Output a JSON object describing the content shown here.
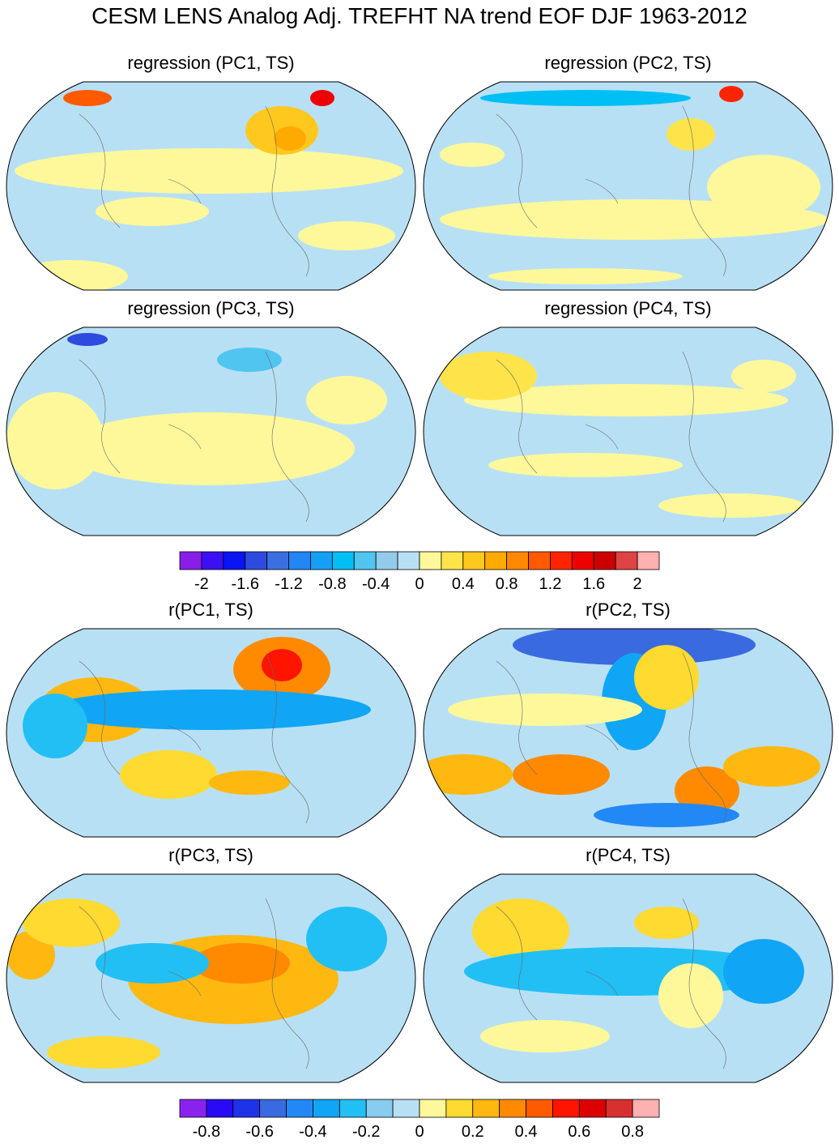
{
  "title": "CESM LENS Analog Adj. TREFHT NA trend EOF DJF 1963-2012",
  "chart_data": [
    {
      "type": "heatmap",
      "panels": [
        {
          "title": "regression (PC1, TS)"
        },
        {
          "title": "regression (PC2, TS)"
        },
        {
          "title": "regression (PC3, TS)"
        },
        {
          "title": "regression (PC4, TS)"
        }
      ],
      "colorbar": {
        "labels": [
          "-2",
          "-1.6",
          "-1.2",
          "-0.8",
          "-0.4",
          "0",
          "0.4",
          "0.8",
          "1.2",
          "1.6",
          "2"
        ],
        "colors": [
          "#8a1ee8",
          "#3b10f5",
          "#0a14f5",
          "#2e4be0",
          "#3b6fe0",
          "#2286f5",
          "#15a0f5",
          "#00bff5",
          "#50c5f0",
          "#93cbea",
          "#b8e0f5",
          "#fff89a",
          "#ffe34a",
          "#ffc81e",
          "#ffaa00",
          "#ff8800",
          "#ff5a00",
          "#ff2400",
          "#ee0000",
          "#cc0000",
          "#dd4444",
          "#ffb0b0"
        ]
      }
    },
    {
      "type": "heatmap",
      "panels": [
        {
          "title": "r(PC1, TS)"
        },
        {
          "title": "r(PC2, TS)"
        },
        {
          "title": "r(PC3, TS)"
        },
        {
          "title": "r(PC4, TS)"
        }
      ],
      "colorbar": {
        "labels": [
          "-0.8",
          "-0.6",
          "-0.4",
          "-0.2",
          "0",
          "0.2",
          "0.4",
          "0.6",
          "0.8"
        ],
        "colors": [
          "#8a22ee",
          "#2a0af5",
          "#1e32e8",
          "#3a6ae0",
          "#2288f5",
          "#10a5f5",
          "#22bff5",
          "#88ccf0",
          "#b8e0f5",
          "#fff89a",
          "#ffda30",
          "#ffb810",
          "#ff8a00",
          "#ff5a00",
          "#ff1400",
          "#dd0000",
          "#d83030",
          "#ffb0b0"
        ]
      }
    }
  ]
}
